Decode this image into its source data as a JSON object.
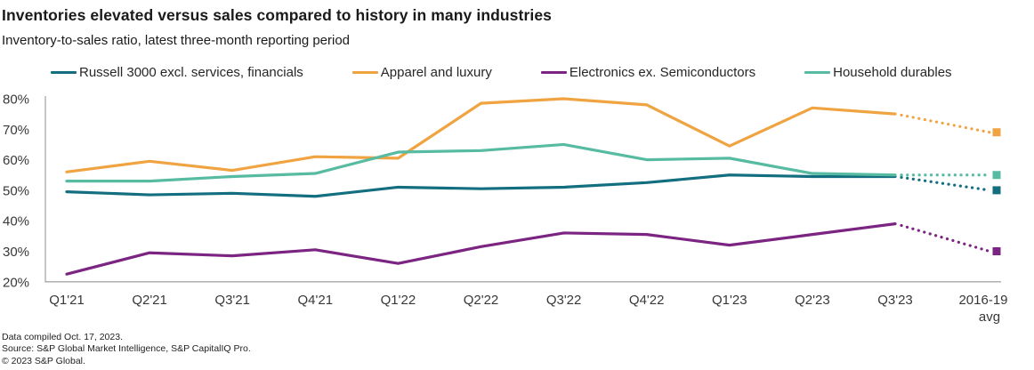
{
  "header": {
    "title": "Inventories elevated versus sales compared to history in many industries",
    "subtitle": "Inventory-to-sales ratio, latest three-month reporting period"
  },
  "chart_data": {
    "type": "line",
    "title": "Inventories elevated versus sales compared to history in many industries",
    "subtitle": "Inventory-to-sales ratio, latest three-month reporting period",
    "unit": "percent",
    "categories": [
      "Q1'21",
      "Q2'21",
      "Q3'21",
      "Q4'21",
      "Q1'22",
      "Q2'22",
      "Q3'22",
      "Q4'22",
      "Q1'23",
      "Q2'23",
      "Q3'23",
      "2016-19 avg"
    ],
    "ylim": [
      20,
      80
    ],
    "ytick_labels": [
      "80%",
      "70%",
      "60%",
      "50%",
      "40%",
      "30%",
      "20%"
    ],
    "grid": false,
    "legend_position": "top",
    "final_segment_style": "dotted-to-average-marker",
    "avg_marker_shape": "square",
    "axis_color": "#a7a7a7",
    "series": [
      {
        "name": "Russell 3000 excl. services, financials",
        "color": "#136f80",
        "values": [
          49.5,
          48.5,
          49,
          48,
          51,
          50.5,
          51,
          52.5,
          55,
          54.5,
          54.5
        ],
        "avg_2016_19": 50
      },
      {
        "name": "Apparel and luxury",
        "color": "#f0a341",
        "values": [
          56,
          59.5,
          56.5,
          61,
          60.5,
          78.5,
          80,
          78,
          64.5,
          77,
          75
        ],
        "avg_2016_19": 69
      },
      {
        "name": "Electronics ex. Semiconductors",
        "color": "#7b2482",
        "values": [
          22.5,
          29.5,
          28.5,
          30.5,
          26,
          31.5,
          36,
          35.5,
          32,
          35.5,
          39
        ],
        "avg_2016_19": 30
      },
      {
        "name": "Household durables",
        "color": "#57bba1",
        "values": [
          53,
          53,
          54.5,
          55.5,
          62.5,
          63,
          65,
          60,
          60.5,
          55.5,
          55
        ],
        "avg_2016_19": 55
      }
    ]
  },
  "footer": {
    "line1": "Data compiled Oct. 17, 2023.",
    "line2": "Source: S&P Global Market Intelligence, S&P CapitalIQ Pro.",
    "line3": "© 2023 S&P Global."
  }
}
